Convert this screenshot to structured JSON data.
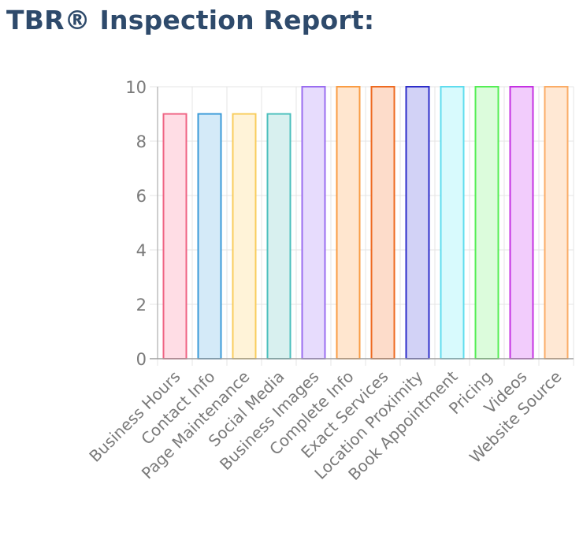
{
  "page": {
    "title": "TBR® Inspection Report:"
  },
  "chart_data": {
    "type": "bar",
    "categories": [
      "Business Hours",
      "Contact Info",
      "Page Maintenance",
      "Social Media",
      "Business Images",
      "Complete Info",
      "Exact Services",
      "Location Proximity",
      "Book Appointment",
      "Pricing",
      "Videos",
      "Website Source"
    ],
    "values": [
      9,
      9,
      9,
      9,
      10,
      10,
      10,
      10,
      10,
      10,
      10,
      10
    ],
    "ylim": [
      0,
      10
    ],
    "yticks": [
      "0",
      "2",
      "4",
      "6",
      "8",
      "10"
    ],
    "grid": true,
    "legend": "none",
    "colors": [
      {
        "fill": "#ffdde5",
        "stroke": "#ef6383"
      },
      {
        "fill": "#d4eaf8",
        "stroke": "#3a9ad8"
      },
      {
        "fill": "#fff3d8",
        "stroke": "#f8cc5c"
      },
      {
        "fill": "#d8f0ef",
        "stroke": "#4bbfbc"
      },
      {
        "fill": "#e7dcfd",
        "stroke": "#9a6df0"
      },
      {
        "fill": "#ffe6cf",
        "stroke": "#fa9c43"
      },
      {
        "fill": "#fddcca",
        "stroke": "#ee6a20"
      },
      {
        "fill": "#d2d2f6",
        "stroke": "#2d2dc9"
      },
      {
        "fill": "#d8fafd",
        "stroke": "#5fdcee"
      },
      {
        "fill": "#dcfcdc",
        "stroke": "#55ee55"
      },
      {
        "fill": "#f2ccfc",
        "stroke": "#c431e2"
      },
      {
        "fill": "#ffe8d4",
        "stroke": "#fbac66"
      }
    ]
  }
}
